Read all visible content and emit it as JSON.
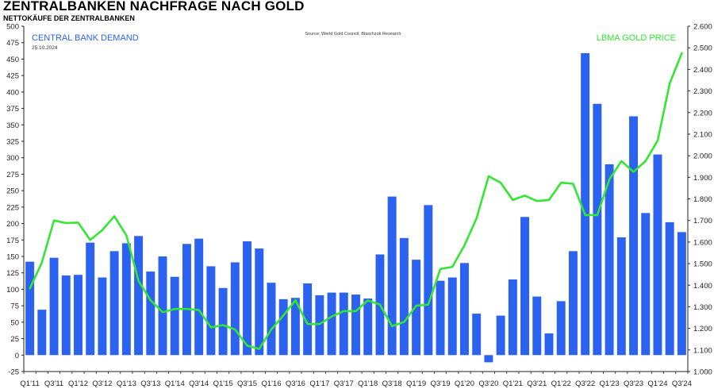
{
  "chart_data": {
    "type": "bar+line",
    "title": "ZENTRALBANKEN NACHFRAGE NACH GOLD",
    "subtitle": "NETTOKÄUFE DER ZENTRALBANKEN",
    "source": "Source: World Gold Council, Blaschzok Research",
    "date": "25.10.2024",
    "ylim_left": [
      -25,
      500
    ],
    "yticks_left": [
      "-25",
      "0",
      "25",
      "50",
      "75",
      "100",
      "125",
      "150",
      "175",
      "200",
      "225",
      "250",
      "275",
      "300",
      "325",
      "350",
      "375",
      "400",
      "425",
      "450",
      "475",
      "500"
    ],
    "ylim_right": [
      1000,
      2600
    ],
    "yticks_right": [
      "1.000",
      "1.100",
      "1.200",
      "1.300",
      "1.400",
      "1.500",
      "1.600",
      "1.700",
      "1.800",
      "1.900",
      "2.000",
      "2.100",
      "2.200",
      "2.300",
      "2.400",
      "2.500",
      "2.600"
    ],
    "categories": [
      "Q1'11",
      "Q2'11",
      "Q3'11",
      "Q4'11",
      "Q1'12",
      "Q2'12",
      "Q3'12",
      "Q4'12",
      "Q1'13",
      "Q2'13",
      "Q3'13",
      "Q4'13",
      "Q1'14",
      "Q2'14",
      "Q3'14",
      "Q4'14",
      "Q1'15",
      "Q2'15",
      "Q3'15",
      "Q4'15",
      "Q1'16",
      "Q2'16",
      "Q3'16",
      "Q4'16",
      "Q1'17",
      "Q2'17",
      "Q3'17",
      "Q4'17",
      "Q1'18",
      "Q2'18",
      "Q3'18",
      "Q4'18",
      "Q1'19",
      "Q2'19",
      "Q3'19",
      "Q4'19",
      "Q1'20",
      "Q2'20",
      "Q3'20",
      "Q4'20",
      "Q1'21",
      "Q2'21",
      "Q3'21",
      "Q4'21",
      "Q1'22",
      "Q2'22",
      "Q3'22",
      "Q4'22",
      "Q1'23",
      "Q2'23",
      "Q3'23",
      "Q4'23",
      "Q1'24",
      "Q2'24",
      "Q3'24"
    ],
    "xtick_labels": [
      "Q1'11",
      "Q3'11",
      "Q1'12",
      "Q3'12",
      "Q1'13",
      "Q3'13",
      "Q1'14",
      "Q3'14",
      "Q1'15",
      "Q3'15",
      "Q1'16",
      "Q3'16",
      "Q1'17",
      "Q3'17",
      "Q1'18",
      "Q3'18",
      "Q1'19",
      "Q3'19",
      "Q1'20",
      "Q3'20",
      "Q1'21",
      "Q3'21",
      "Q1'22",
      "Q3'22",
      "Q1'23",
      "Q3'23",
      "Q1'24",
      "Q3'24"
    ],
    "series": [
      {
        "name": "CENTRAL BANK DEMAND",
        "axis": "left",
        "kind": "bar",
        "color": "#2b62f0",
        "values": [
          142,
          69,
          148,
          121,
          122,
          171,
          118,
          158,
          170,
          181,
          127,
          150,
          119,
          169,
          177,
          135,
          102,
          141,
          173,
          162,
          110,
          85,
          87,
          109,
          91,
          95,
          95,
          92,
          86,
          153,
          241,
          178,
          145,
          228,
          113,
          118,
          140,
          63,
          -11,
          60,
          115,
          210,
          89,
          33,
          82,
          158,
          459,
          382,
          290,
          179,
          363,
          216,
          305,
          202,
          187
        ]
      },
      {
        "name": "LBMA GOLD PRICE",
        "axis": "right",
        "kind": "line",
        "color": "#33e633",
        "values": [
          1385,
          1505,
          1700,
          1688,
          1690,
          1610,
          1655,
          1720,
          1630,
          1420,
          1330,
          1275,
          1290,
          1290,
          1285,
          1205,
          1215,
          1195,
          1120,
          1105,
          1195,
          1260,
          1330,
          1220,
          1220,
          1255,
          1280,
          1280,
          1330,
          1310,
          1210,
          1230,
          1305,
          1310,
          1475,
          1485,
          1585,
          1710,
          1905,
          1875,
          1795,
          1815,
          1790,
          1795,
          1875,
          1870,
          1725,
          1725,
          1890,
          1975,
          1925,
          1975,
          2070,
          2335,
          2475
        ]
      }
    ],
    "grid": false,
    "legend": "top-left / top-right labels"
  }
}
